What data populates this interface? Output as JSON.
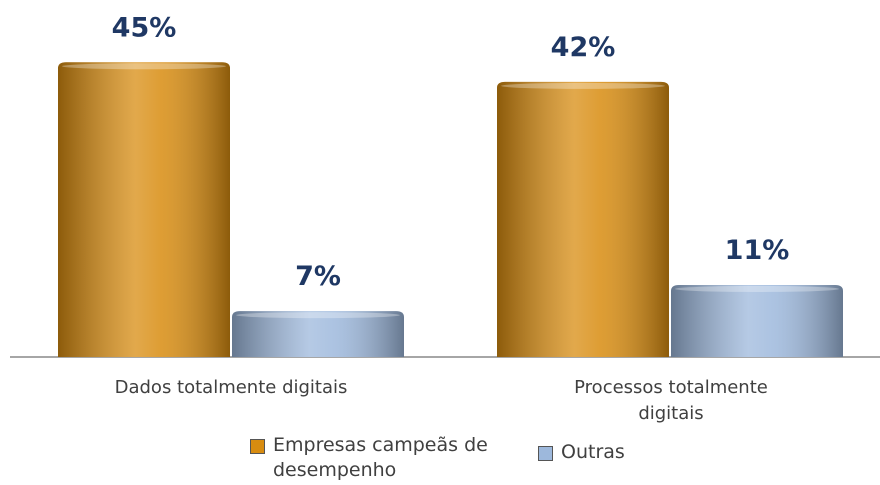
{
  "chart_data": {
    "type": "bar",
    "categories": [
      "Dados totalmente digitais",
      "Processos totalmente digitais"
    ],
    "series": [
      {
        "name": "Empresas campeãs de desempenho",
        "color": "#d88c10",
        "values": [
          45,
          42
        ],
        "value_labels": [
          "45%",
          "42%"
        ]
      },
      {
        "name": "Outras",
        "color": "#9db8dc",
        "values": [
          7,
          11
        ],
        "value_labels": [
          "7%",
          "11%"
        ]
      }
    ]
  }
}
